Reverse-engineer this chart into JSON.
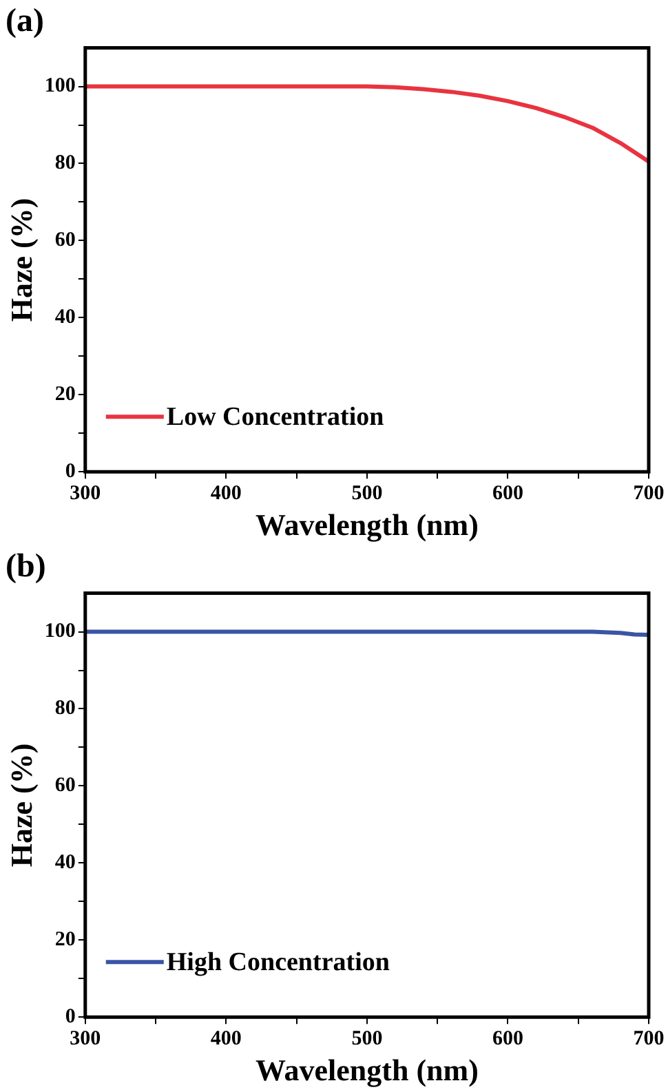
{
  "chart_data": [
    {
      "type": "line",
      "title": "(a)",
      "xlabel": "Wavelength (nm)",
      "ylabel": "Haze (%)",
      "x": [
        300,
        350,
        400,
        450,
        500,
        520,
        540,
        560,
        580,
        600,
        620,
        640,
        660,
        680,
        700
      ],
      "series": [
        {
          "name": "Low Concentration",
          "color": "#e8343f",
          "values": [
            100,
            100,
            100,
            100,
            100,
            99.8,
            99.3,
            98.6,
            97.6,
            96.2,
            94.4,
            92.1,
            89.3,
            85.3,
            80.5
          ]
        }
      ],
      "xlim": [
        300,
        700
      ],
      "xticks": [
        300,
        {
          "value": 350,
          "label": null
        },
        400,
        {
          "value": 450,
          "label": null
        },
        500,
        {
          "value": 550,
          "label": null
        },
        600,
        {
          "value": 650,
          "label": null
        },
        700
      ],
      "ylim": [
        0,
        110
      ],
      "yticks": [
        0,
        {
          "value": 10,
          "label": null
        },
        20,
        {
          "value": 30,
          "label": null
        },
        40,
        {
          "value": 50,
          "label": null
        },
        60,
        {
          "value": 70,
          "label": null
        },
        80,
        {
          "value": 90,
          "label": null
        },
        100
      ],
      "legend": "bottom left",
      "grid": false,
      "marker": "none",
      "line_style": "solid"
    },
    {
      "type": "line",
      "title": "(b)",
      "xlabel": "Wavelength (nm)",
      "ylabel": "Haze (%)",
      "x": [
        300,
        400,
        500,
        600,
        660,
        680,
        690,
        700
      ],
      "series": [
        {
          "name": "High Concentration",
          "color": "#3a55a4",
          "values": [
            100,
            100,
            100,
            100,
            100,
            99.7,
            99.3,
            99.2
          ]
        }
      ],
      "xlim": [
        300,
        700
      ],
      "xticks": [
        300,
        {
          "value": 350,
          "label": null
        },
        400,
        {
          "value": 450,
          "label": null
        },
        500,
        {
          "value": 550,
          "label": null
        },
        600,
        {
          "value": 650,
          "label": null
        },
        700
      ],
      "ylim": [
        0,
        110
      ],
      "yticks": [
        0,
        {
          "value": 10,
          "label": null
        },
        20,
        {
          "value": 30,
          "label": null
        },
        40,
        {
          "value": 50,
          "label": null
        },
        60,
        {
          "value": 70,
          "label": null
        },
        80,
        {
          "value": 90,
          "label": null
        },
        100
      ],
      "legend": "bottom left",
      "grid": false,
      "marker": "none",
      "line_style": "solid"
    }
  ]
}
